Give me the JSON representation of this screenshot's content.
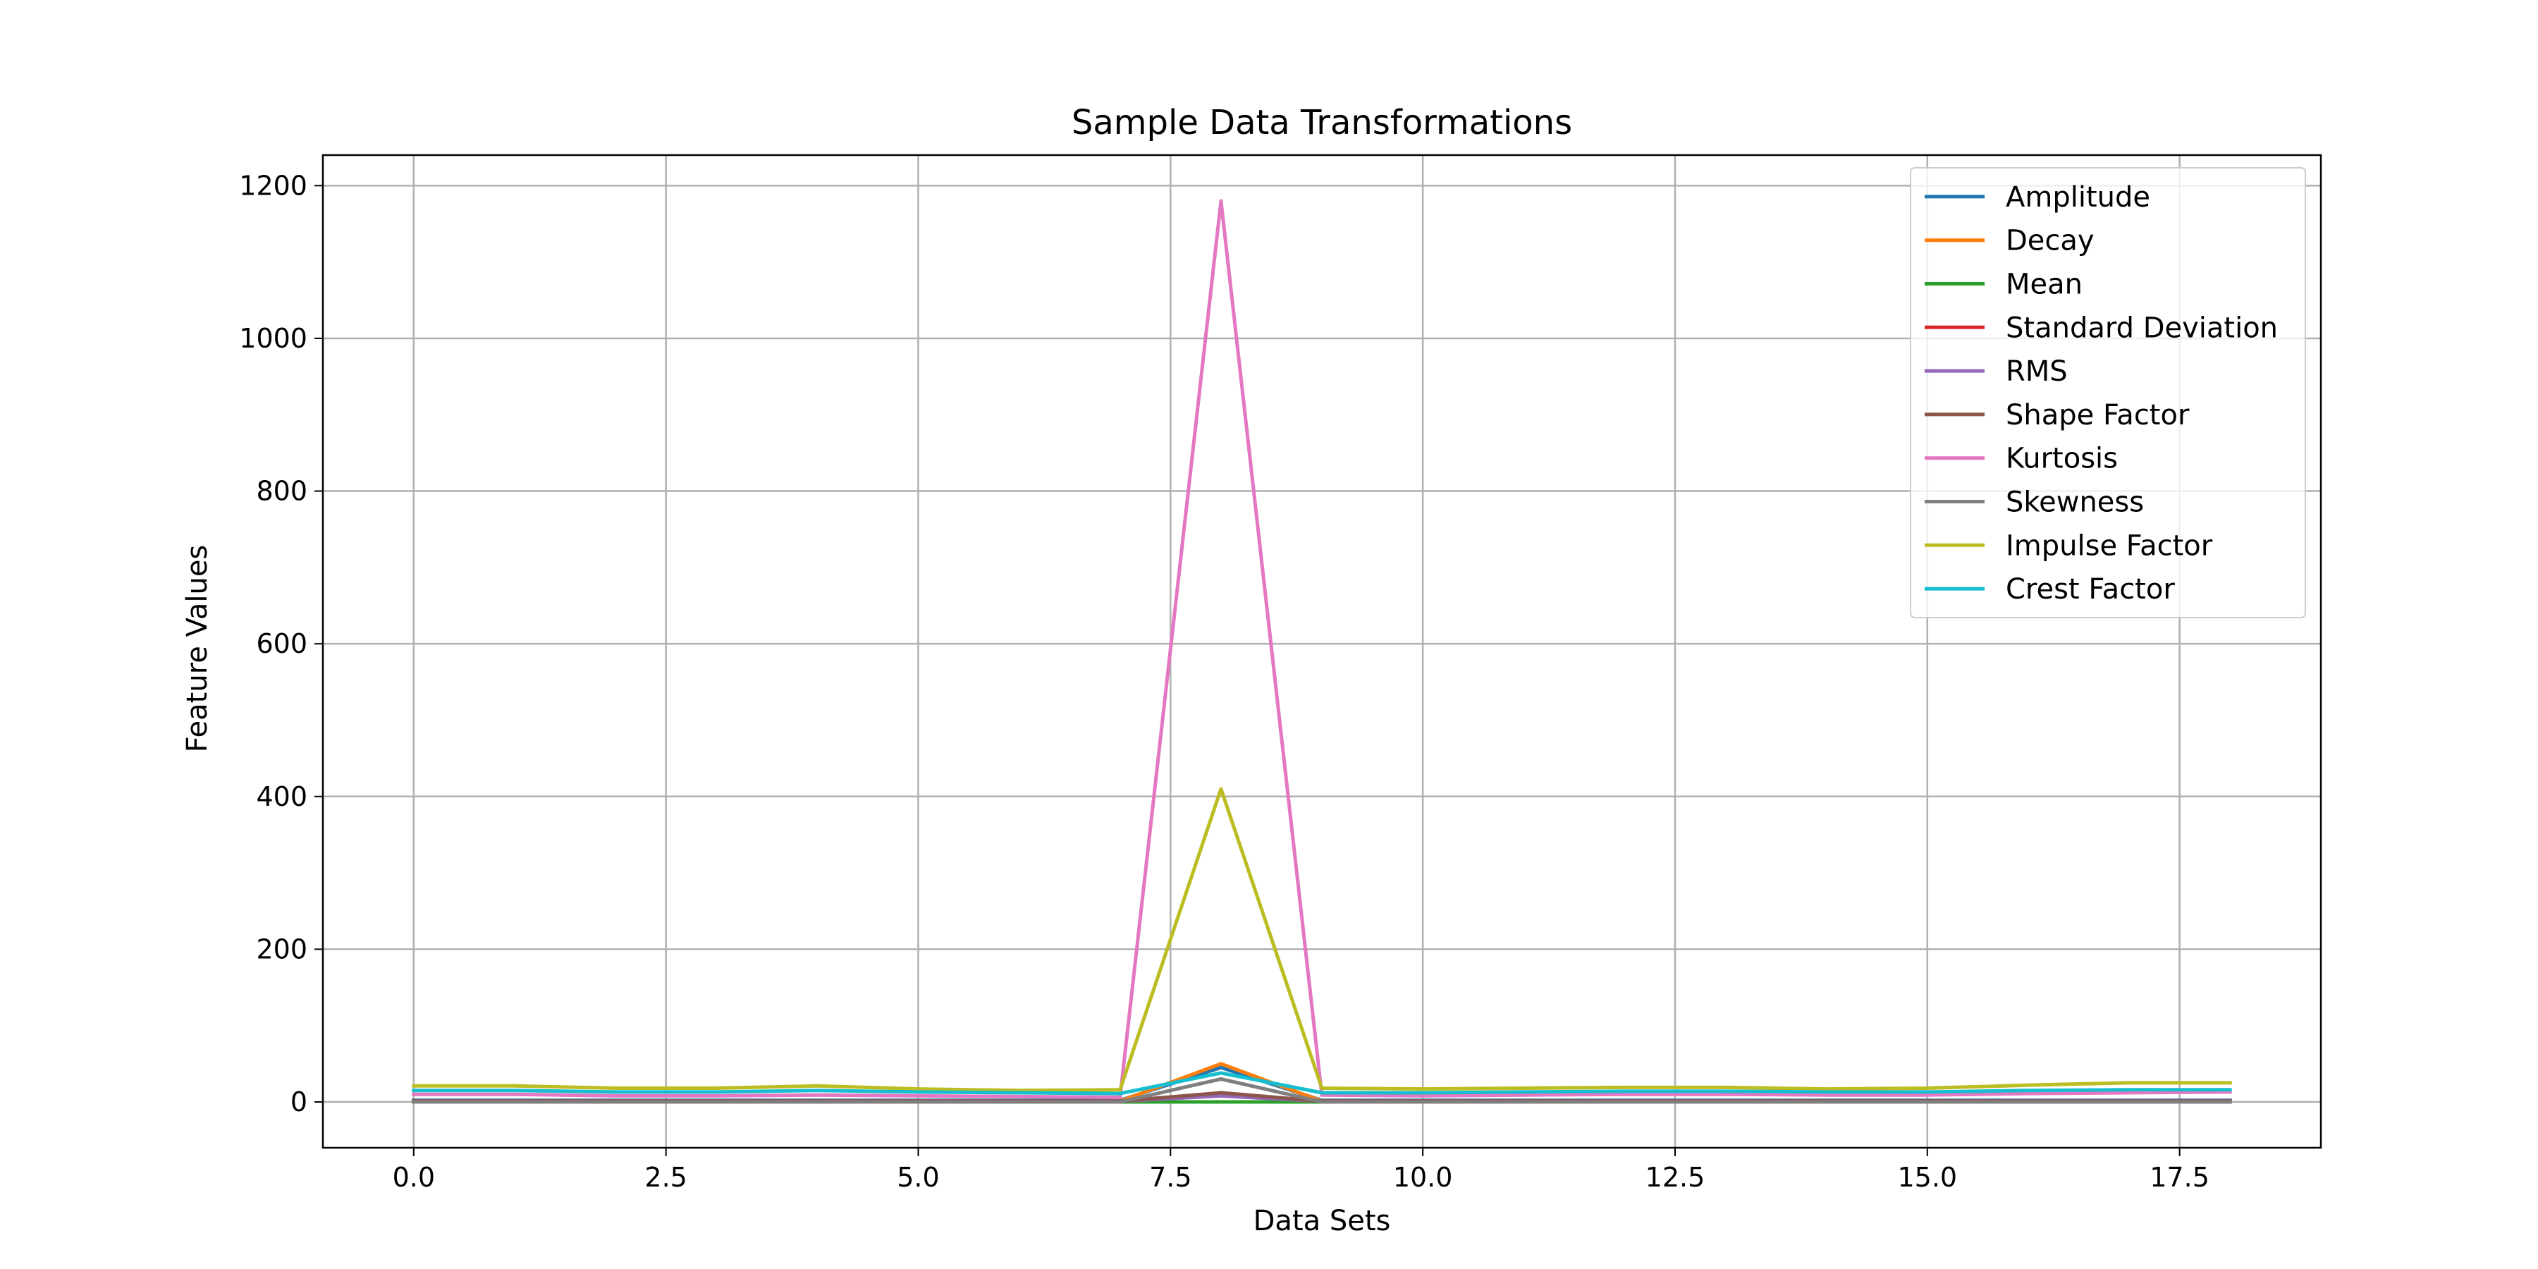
{
  "chart_data": {
    "type": "line",
    "title": "Sample Data Transformations",
    "xlabel": "Data Sets",
    "ylabel": "Feature Values",
    "xlim": [
      -0.9,
      18.9
    ],
    "ylim": [
      -60,
      1240
    ],
    "xticks": [
      0.0,
      2.5,
      5.0,
      7.5,
      10.0,
      12.5,
      15.0,
      17.5
    ],
    "xtick_labels": [
      "0.0",
      "2.5",
      "5.0",
      "7.5",
      "10.0",
      "12.5",
      "15.0",
      "17.5"
    ],
    "yticks": [
      0,
      200,
      400,
      600,
      800,
      1000,
      1200
    ],
    "ytick_labels": [
      "0",
      "200",
      "400",
      "600",
      "800",
      "1000",
      "1200"
    ],
    "grid": true,
    "legend_position": "top-right",
    "x": [
      0,
      1,
      2,
      3,
      4,
      5,
      6,
      7,
      8,
      9,
      10,
      11,
      12,
      13,
      14,
      15,
      16,
      17,
      18
    ],
    "series": [
      {
        "name": "Amplitude",
        "color": "#1f77b4",
        "values": [
          2,
          2,
          2,
          2,
          2,
          2,
          2,
          2,
          45,
          2,
          2,
          2,
          2,
          2,
          2,
          2,
          2,
          2,
          2
        ]
      },
      {
        "name": "Decay",
        "color": "#ff7f0e",
        "values": [
          1,
          1,
          1,
          1,
          1,
          1,
          1,
          1,
          50,
          1,
          1,
          1,
          1,
          1,
          1,
          1,
          1,
          1,
          1
        ]
      },
      {
        "name": "Mean",
        "color": "#2ca02c",
        "values": [
          0,
          0,
          0,
          0,
          0,
          0,
          0,
          0,
          0,
          0,
          0,
          0,
          0,
          0,
          0,
          0,
          0,
          0,
          0
        ]
      },
      {
        "name": "Standard Deviation",
        "color": "#d62728",
        "values": [
          1,
          1,
          1,
          1,
          1,
          1,
          1,
          1,
          8,
          1,
          1,
          1,
          1,
          1,
          1,
          1,
          1,
          1,
          1
        ]
      },
      {
        "name": "RMS",
        "color": "#9467bd",
        "values": [
          1,
          1,
          1,
          1,
          1,
          1,
          1,
          1,
          8,
          1,
          1,
          1,
          1,
          1,
          1,
          1,
          1,
          1,
          1
        ]
      },
      {
        "name": "Shape Factor",
        "color": "#8c564b",
        "values": [
          1,
          1,
          1,
          1,
          1,
          1,
          1,
          1,
          12,
          1,
          1,
          1,
          1,
          1,
          1,
          1,
          1,
          1,
          1
        ]
      },
      {
        "name": "Kurtosis",
        "color": "#e377c2",
        "values": [
          10,
          10,
          8,
          8,
          9,
          8,
          7,
          6,
          1180,
          9,
          8,
          9,
          10,
          10,
          9,
          9,
          11,
          12,
          13
        ]
      },
      {
        "name": "Skewness",
        "color": "#7f7f7f",
        "values": [
          0,
          0,
          0,
          0,
          0,
          0,
          0,
          0,
          30,
          0,
          0,
          0,
          0,
          0,
          0,
          0,
          0,
          0,
          0
        ]
      },
      {
        "name": "Impulse Factor",
        "color": "#bcbd22",
        "values": [
          21,
          21,
          18,
          18,
          21,
          17,
          15,
          16,
          410,
          18,
          17,
          18,
          19,
          19,
          17,
          18,
          22,
          25,
          25
        ]
      },
      {
        "name": "Crest Factor",
        "color": "#17becf",
        "values": [
          15,
          15,
          13,
          13,
          15,
          13,
          12,
          11,
          38,
          12,
          12,
          13,
          14,
          14,
          13,
          13,
          15,
          16,
          16
        ]
      }
    ]
  }
}
